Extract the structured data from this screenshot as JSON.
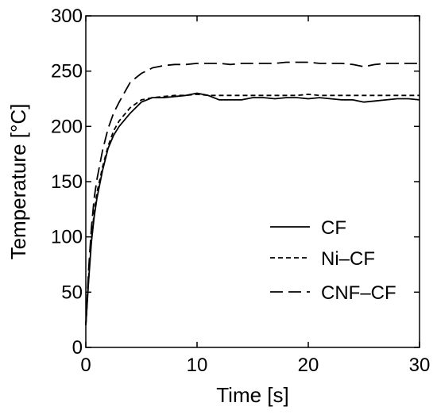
{
  "chart_data": {
    "type": "line",
    "xlabel": "Time [s]",
    "ylabel": "Temperature [°C]",
    "xlim": [
      0,
      30
    ],
    "ylim": [
      0,
      300
    ],
    "xticks": [
      "0",
      "10",
      "20",
      "30"
    ],
    "yticks": [
      "0",
      "50",
      "100",
      "150",
      "200",
      "250",
      "300"
    ],
    "grid": false,
    "legend_position": "bottom-right",
    "series": [
      {
        "name": "CF",
        "dash": "solid",
        "x": [
          0,
          0.25,
          0.5,
          0.75,
          1,
          1.5,
          2,
          2.5,
          3,
          4,
          5,
          6,
          7,
          8,
          9,
          10,
          11,
          12,
          13,
          14,
          15,
          16,
          17,
          18,
          19,
          20,
          21,
          22,
          23,
          24,
          25,
          26,
          27,
          28,
          29,
          30
        ],
        "y": [
          20,
          60,
          95,
          118,
          135,
          160,
          180,
          192,
          200,
          212,
          222,
          226,
          226,
          227,
          228,
          230,
          228,
          224,
          224,
          224,
          226,
          226,
          225,
          226,
          226,
          225,
          226,
          225,
          224,
          224,
          222,
          223,
          224,
          225,
          225,
          224
        ]
      },
      {
        "name": "Ni–CF",
        "dash": "short",
        "x": [
          0,
          0.25,
          0.5,
          0.75,
          1,
          1.5,
          2,
          2.5,
          3,
          4,
          5,
          6,
          7,
          8,
          9,
          10,
          11,
          12,
          13,
          14,
          15,
          16,
          17,
          18,
          19,
          20,
          21,
          22,
          23,
          24,
          25,
          26,
          27,
          28,
          29,
          30
        ],
        "y": [
          20,
          62,
          97,
          122,
          140,
          163,
          182,
          196,
          205,
          217,
          224,
          226,
          227,
          228,
          228,
          229,
          228,
          228,
          228,
          228,
          228,
          228,
          228,
          228,
          228,
          229,
          228,
          228,
          228,
          228,
          228,
          228,
          228,
          228,
          228,
          228
        ]
      },
      {
        "name": "CNF–CF",
        "dash": "long",
        "x": [
          0,
          0.25,
          0.5,
          0.75,
          1,
          1.5,
          2,
          2.5,
          3,
          4,
          5,
          6,
          7,
          8,
          9,
          10,
          11,
          12,
          13,
          14,
          15,
          16,
          17,
          18,
          19,
          20,
          21,
          22,
          23,
          24,
          25,
          26,
          27,
          28,
          29,
          30
        ],
        "y": [
          20,
          70,
          108,
          135,
          152,
          178,
          198,
          212,
          222,
          240,
          248,
          253,
          255,
          256,
          256,
          257,
          257,
          257,
          256,
          257,
          257,
          257,
          257,
          258,
          258,
          258,
          257,
          257,
          257,
          256,
          254,
          256,
          257,
          257,
          257,
          257
        ]
      }
    ]
  }
}
